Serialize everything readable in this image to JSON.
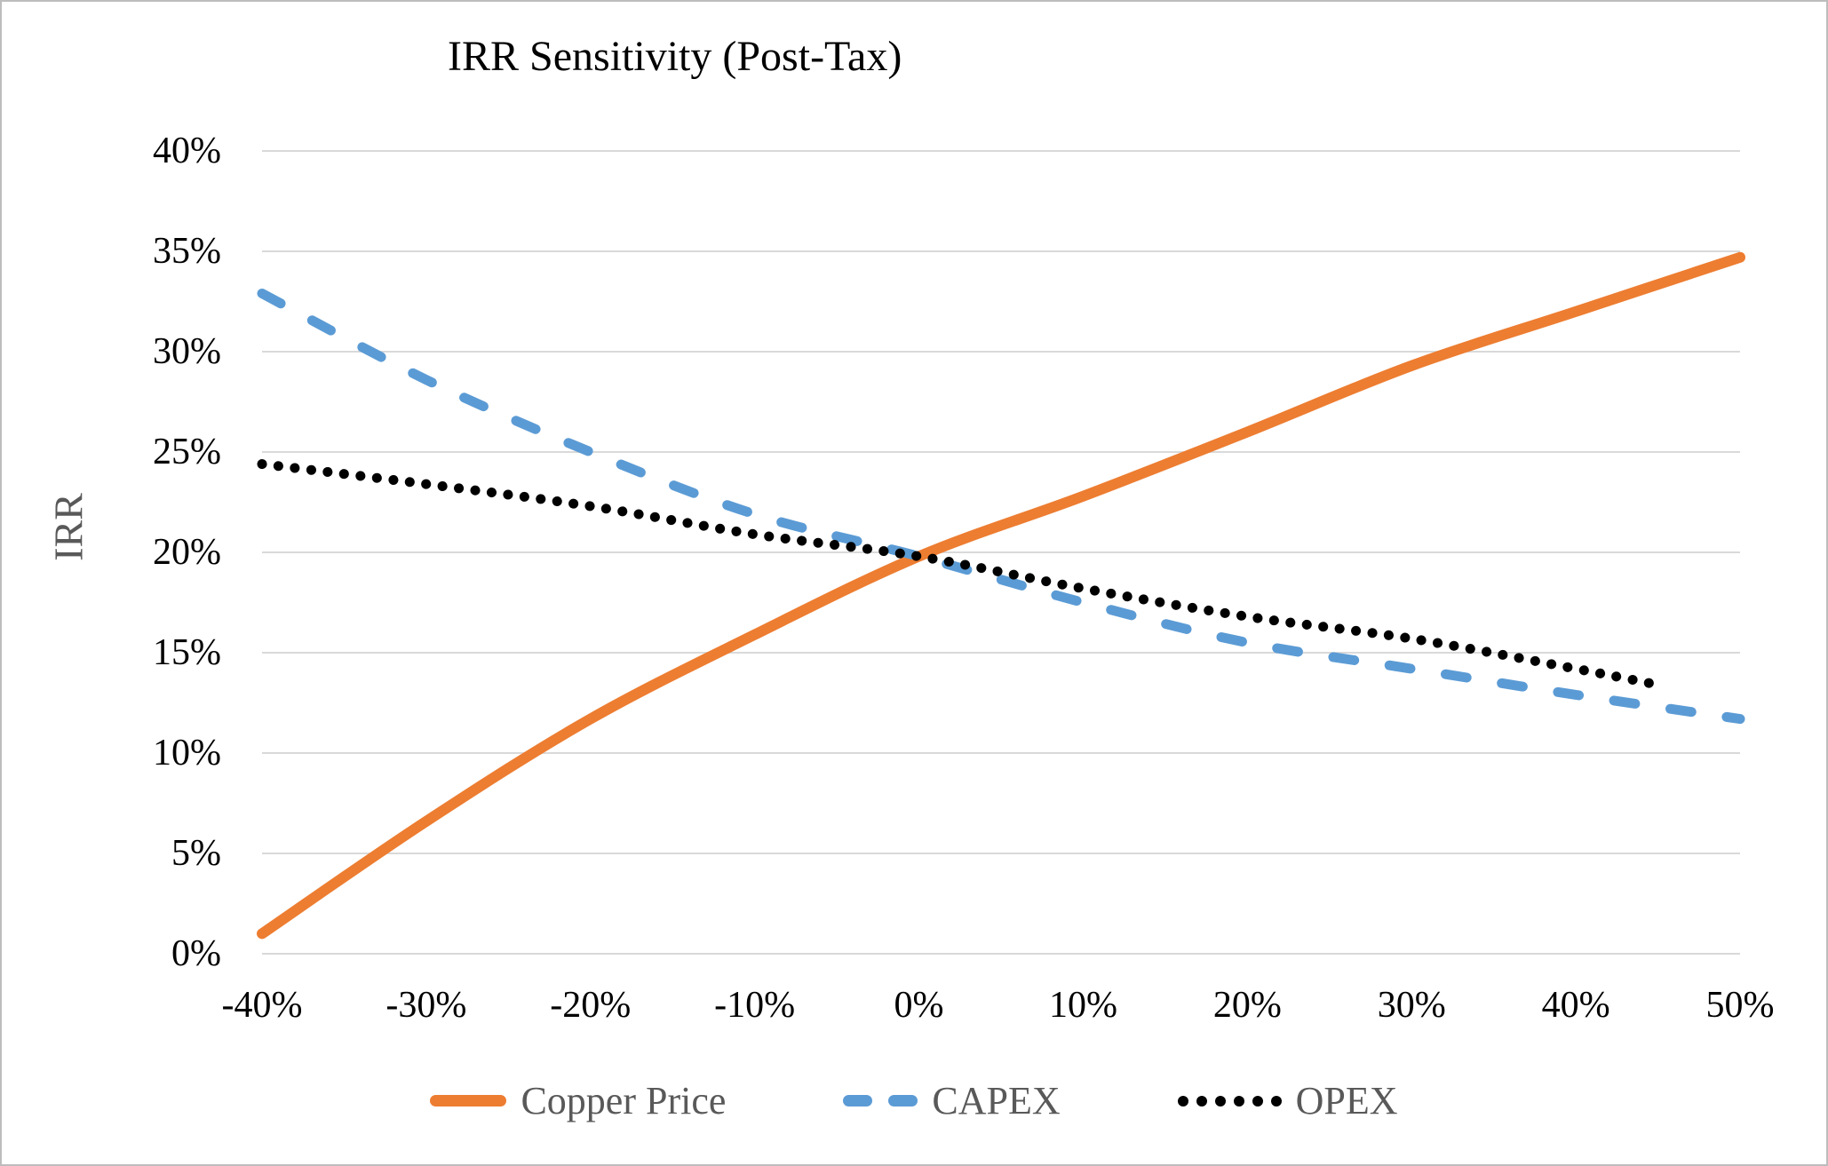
{
  "chart_data": {
    "type": "line",
    "title": "IRR Sensitivity (Post-Tax)",
    "xlabel": "",
    "ylabel": "IRR",
    "xlim": [
      -40,
      50
    ],
    "ylim": [
      0,
      40
    ],
    "grid": "horizontal",
    "legend_position": "bottom",
    "x_ticks": [
      -40,
      -30,
      -20,
      -10,
      0,
      10,
      20,
      30,
      40,
      50
    ],
    "x_tick_labels": [
      "-40%",
      "-30%",
      "-20%",
      "-10%",
      "0%",
      "10%",
      "20%",
      "30%",
      "40%",
      "50%"
    ],
    "y_ticks": [
      0,
      5,
      10,
      15,
      20,
      25,
      30,
      35,
      40
    ],
    "y_tick_labels": [
      "0%",
      "5%",
      "10%",
      "15%",
      "20%",
      "25%",
      "30%",
      "35%",
      "40%"
    ],
    "gridline_color": "#d9d9d9",
    "series": [
      {
        "name": "Copper Price",
        "style": "solid",
        "color": "#ED7D31",
        "x": [
          -40,
          -30,
          -20,
          -10,
          0,
          10,
          20,
          30,
          40,
          50
        ],
        "y": [
          1.0,
          6.6,
          11.7,
          15.9,
          19.8,
          22.8,
          26.0,
          29.3,
          32.0,
          34.7
        ]
      },
      {
        "name": "CAPEX",
        "style": "dashed",
        "color": "#5B9BD5",
        "x": [
          -40,
          -30,
          -20,
          -10,
          0,
          10,
          20,
          30,
          40,
          50
        ],
        "y": [
          32.9,
          28.6,
          25.0,
          21.9,
          19.8,
          17.5,
          15.5,
          14.2,
          12.9,
          11.7
        ]
      },
      {
        "name": "OPEX",
        "style": "dotted",
        "color": "#000000",
        "x": [
          -40,
          -30,
          -20,
          -10,
          0,
          10,
          20,
          30,
          40,
          45
        ],
        "y": [
          24.4,
          23.4,
          22.3,
          20.9,
          19.8,
          18.2,
          16.8,
          15.7,
          14.2,
          13.4
        ]
      }
    ]
  },
  "text_colors": {
    "title": "#000000",
    "tick_labels": "#000000",
    "axis_title": "#595959",
    "legend_labels": "#595959"
  }
}
